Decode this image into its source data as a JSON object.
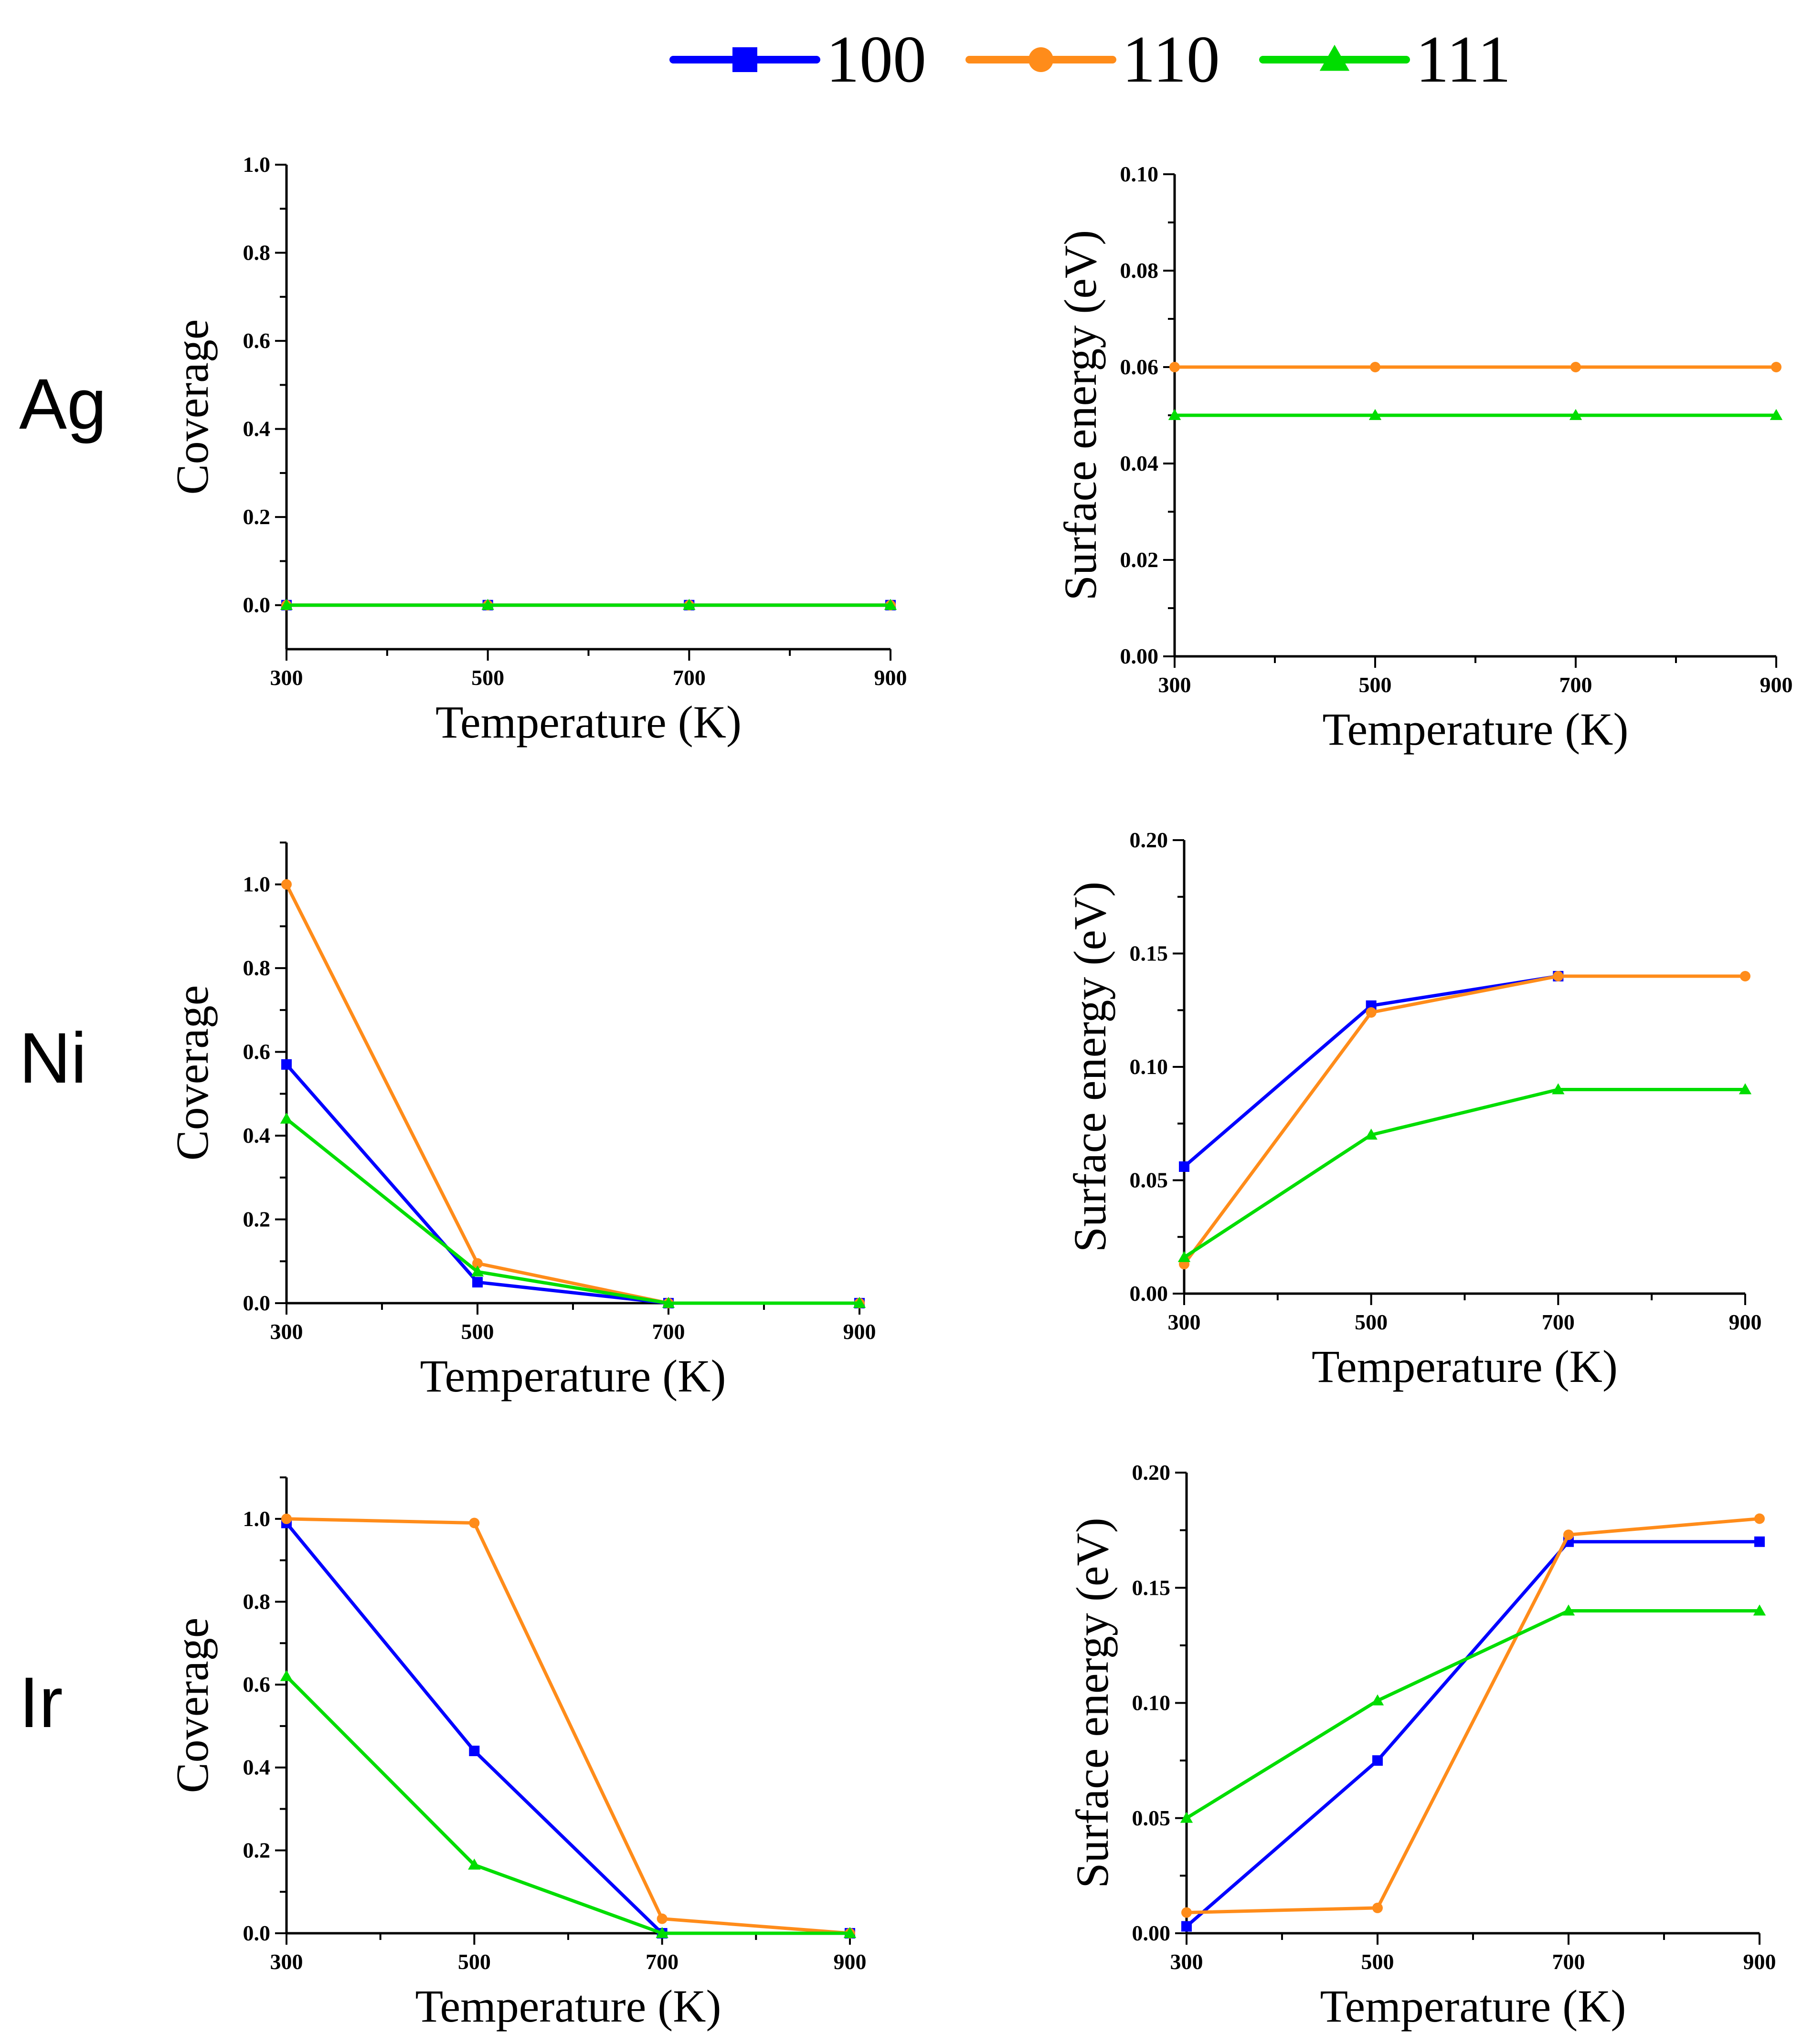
{
  "legend": [
    {
      "label": "100",
      "color": "#0000ff",
      "marker": "square"
    },
    {
      "label": "110",
      "color": "#ff8c1a",
      "marker": "circle"
    },
    {
      "label": "111",
      "color": "#00dd00",
      "marker": "triangle"
    }
  ],
  "rows": [
    {
      "label": "Ag"
    },
    {
      "label": "Ni"
    },
    {
      "label": "Ir"
    }
  ],
  "chart_data": [
    {
      "type": "line",
      "id": "ag-coverage",
      "row": "Ag",
      "xlabel": "Temperature (K)",
      "ylabel": "Coverage",
      "x": [
        300,
        500,
        700,
        900
      ],
      "xlim": [
        300,
        900
      ],
      "ylim": [
        -0.1,
        1.0
      ],
      "yticks": [
        0.0,
        0.2,
        0.4,
        0.6,
        0.8,
        1.0
      ],
      "ytick_labels": [
        "0.0",
        "0.2",
        "0.4",
        "0.6",
        "0.8",
        "1.0"
      ],
      "series": [
        {
          "name": "100",
          "values": [
            0,
            0,
            0,
            0
          ]
        },
        {
          "name": "110",
          "values": [
            0,
            0,
            0,
            0
          ]
        },
        {
          "name": "111",
          "values": [
            0,
            0,
            0,
            0
          ]
        }
      ]
    },
    {
      "type": "line",
      "id": "ag-energy",
      "row": "Ag",
      "xlabel": "Temperature (K)",
      "ylabel": "Surface energy (eV)",
      "x": [
        300,
        500,
        700,
        900
      ],
      "xlim": [
        300,
        900
      ],
      "ylim": [
        0,
        0.1
      ],
      "yticks": [
        0.0,
        0.02,
        0.04,
        0.06,
        0.08,
        0.1
      ],
      "ytick_labels": [
        "0.00",
        "0.02",
        "0.04",
        "0.06",
        "0.08",
        "0.10"
      ],
      "series": [
        {
          "name": "110",
          "values": [
            0.06,
            0.06,
            0.06,
            0.06
          ]
        },
        {
          "name": "111",
          "values": [
            0.05,
            0.05,
            0.05,
            0.05
          ]
        }
      ]
    },
    {
      "type": "line",
      "id": "ni-coverage",
      "row": "Ni",
      "xlabel": "Temperature (K)",
      "ylabel": "Coverage",
      "x": [
        300,
        500,
        700,
        900
      ],
      "xlim": [
        300,
        900
      ],
      "ylim": [
        0,
        1.1
      ],
      "yticks": [
        0.0,
        0.2,
        0.4,
        0.6,
        0.8,
        1.0
      ],
      "ytick_labels": [
        "0.0",
        "0.2",
        "0.4",
        "0.6",
        "0.8",
        "1.0"
      ],
      "series": [
        {
          "name": "100",
          "values": [
            0.57,
            0.05,
            0.0,
            0.0
          ]
        },
        {
          "name": "110",
          "values": [
            1.0,
            0.095,
            0.0,
            0.0
          ]
        },
        {
          "name": "111",
          "values": [
            0.44,
            0.075,
            0.0,
            0.0
          ]
        }
      ]
    },
    {
      "type": "line",
      "id": "ni-energy",
      "row": "Ni",
      "xlabel": "Temperature (K)",
      "ylabel": "Surface energy (eV)",
      "x": [
        300,
        500,
        700,
        900
      ],
      "xlim": [
        300,
        900
      ],
      "ylim": [
        0,
        0.2
      ],
      "yticks": [
        0.0,
        0.05,
        0.1,
        0.15,
        0.2
      ],
      "ytick_labels": [
        "0.00",
        "0.05",
        "0.10",
        "0.15",
        "0.20"
      ],
      "series": [
        {
          "name": "100",
          "x": [
            300,
            500,
            700
          ],
          "values": [
            0.056,
            0.127,
            0.14
          ]
        },
        {
          "name": "110",
          "values": [
            0.013,
            0.124,
            0.14,
            0.14
          ]
        },
        {
          "name": "111",
          "values": [
            0.016,
            0.07,
            0.09,
            0.09
          ]
        }
      ]
    },
    {
      "type": "line",
      "id": "ir-coverage",
      "row": "Ir",
      "xlabel": "Temperature (K)",
      "ylabel": "Coverage",
      "x": [
        300,
        500,
        700,
        900
      ],
      "xlim": [
        300,
        900
      ],
      "ylim": [
        0,
        1.1
      ],
      "yticks": [
        0.0,
        0.2,
        0.4,
        0.6,
        0.8,
        1.0
      ],
      "ytick_labels": [
        "0.0",
        "0.2",
        "0.4",
        "0.6",
        "0.8",
        "1.0"
      ],
      "series": [
        {
          "name": "100",
          "values": [
            0.99,
            0.44,
            0.0,
            0.0
          ]
        },
        {
          "name": "110",
          "values": [
            1.0,
            0.99,
            0.035,
            0.0
          ]
        },
        {
          "name": "111",
          "values": [
            0.62,
            0.165,
            0.0,
            0.0
          ]
        }
      ]
    },
    {
      "type": "line",
      "id": "ir-energy",
      "row": "Ir",
      "xlabel": "Temperature (K)",
      "ylabel": "Surface energy (eV)",
      "x": [
        300,
        500,
        700,
        900
      ],
      "xlim": [
        300,
        900
      ],
      "ylim": [
        0,
        0.2
      ],
      "yticks": [
        0.0,
        0.05,
        0.1,
        0.15,
        0.2
      ],
      "ytick_labels": [
        "0.00",
        "0.05",
        "0.10",
        "0.15",
        "0.20"
      ],
      "series": [
        {
          "name": "100",
          "values": [
            0.003,
            0.075,
            0.17,
            0.17
          ]
        },
        {
          "name": "110",
          "values": [
            0.009,
            0.011,
            0.173,
            0.18
          ]
        },
        {
          "name": "111",
          "values": [
            0.05,
            0.101,
            0.14,
            0.14
          ]
        }
      ]
    }
  ]
}
